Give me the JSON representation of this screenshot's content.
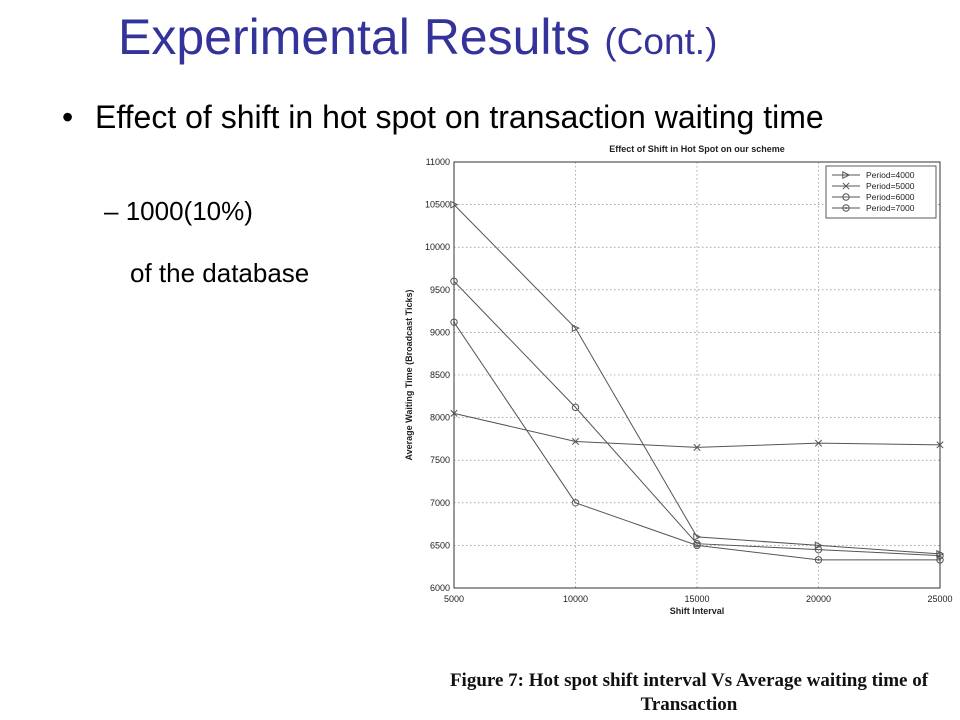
{
  "slide": {
    "title": "Experimental Results",
    "title_suffix": "(Cont.)",
    "bullet_main": "Effect of shift in hot spot on transaction waiting time",
    "bullet_sub_dash": "–",
    "bullet_sub": "1000(10%)",
    "bullet_sub_cont": "of the database",
    "caption": "Figure 7: Hot spot shift interval Vs Average waiting time of Transaction"
  },
  "colors": {
    "title": "#333399",
    "lines": "#555555"
  },
  "chart_data": {
    "type": "line",
    "title": "Effect of Shift in Hot Spot on our scheme",
    "xlabel": "Shift Interval",
    "ylabel": "Average Waiting Time (Broadcast Ticks)",
    "xlim": [
      5000,
      25000
    ],
    "ylim": [
      6000,
      11000
    ],
    "xticks": [
      5000,
      10000,
      15000,
      20000,
      25000
    ],
    "yticks": [
      6000,
      6500,
      7000,
      7500,
      8000,
      8500,
      9000,
      9500,
      10000,
      10500,
      11000
    ],
    "grid": true,
    "legend_position": "top-right",
    "x": [
      5000,
      10000,
      15000,
      20000,
      25000
    ],
    "series": [
      {
        "name": "Period=4000",
        "marker": "triangle-right",
        "values": [
          10500,
          9050,
          6600,
          6500,
          6400
        ]
      },
      {
        "name": "Period=5000",
        "marker": "x",
        "values": [
          8050,
          7720,
          7650,
          7700,
          7680
        ]
      },
      {
        "name": "Period=6000",
        "marker": "circle",
        "values": [
          9600,
          8120,
          6520,
          6450,
          6380
        ]
      },
      {
        "name": "Period=7000",
        "marker": "dot-circle",
        "values": [
          9120,
          7000,
          6500,
          6330,
          6330
        ]
      }
    ]
  }
}
